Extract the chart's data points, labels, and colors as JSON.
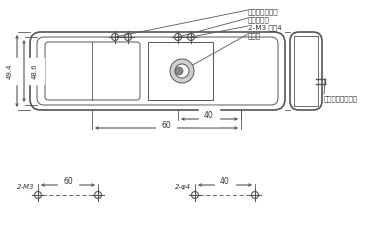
{
  "bg_color": "#ffffff",
  "line_color": "#555555",
  "text_color": "#333333",
  "fig_width": 3.78,
  "fig_height": 2.4,
  "dpi": 100,
  "labels": {
    "neji_hiki": "ねじ引っ掛け穴",
    "toritsuke": "取付ねじ穴",
    "m3": "2-M3 深さ4",
    "denchi": "電池室",
    "reset": "リセットスイッチ",
    "dim_40": "40",
    "dim_60": "60",
    "dim_49_4": "49.4",
    "dim_48_6": "48.6",
    "dim_60b": "60",
    "dim_40b": "40",
    "label_2m3": "2-M3",
    "label_2phi4": "2-φ4"
  }
}
